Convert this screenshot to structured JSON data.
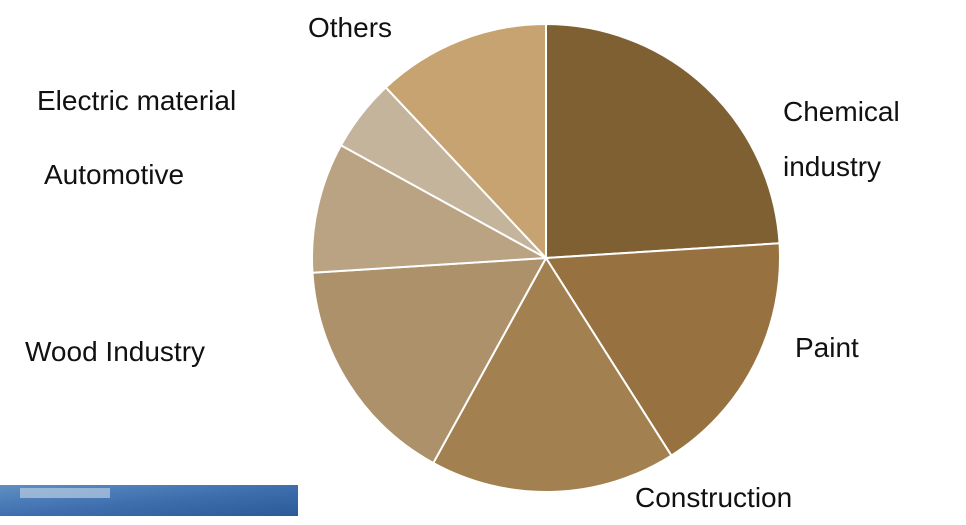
{
  "chart_data": {
    "type": "pie",
    "categories": [
      "Chemical industry",
      "Paint",
      "Construction",
      "Wood Industry",
      "Automotive",
      "Electric material",
      "Others"
    ],
    "values": [
      24,
      17,
      17,
      16,
      9,
      5,
      12
    ],
    "colors": [
      "#7f6033",
      "#977140",
      "#a2804f",
      "#ad916a",
      "#b9a383",
      "#c4b49c",
      "#c6a370"
    ]
  }
}
